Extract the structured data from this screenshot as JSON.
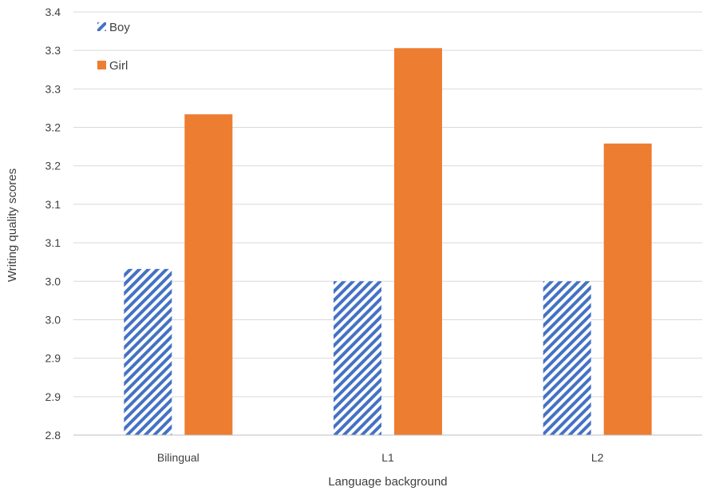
{
  "chart_data": {
    "type": "bar",
    "title": "",
    "xlabel": "Language background",
    "ylabel": "Writing quality scores",
    "categories": [
      "Bilingual",
      "L1",
      "L2"
    ],
    "series": [
      {
        "name": "Boy",
        "values": [
          3.016,
          3.0,
          3.0
        ],
        "color": "#4472C4",
        "pattern": "diagonal-stripes"
      },
      {
        "name": "Girl",
        "values": [
          3.217,
          3.303,
          3.179
        ],
        "color": "#ED7D31",
        "pattern": "solid"
      }
    ],
    "ylim": [
      2.8,
      3.35
    ],
    "y_tick_labels": [
      "2.8",
      "2.9",
      "2.9",
      "3.0",
      "3.0",
      "3.1",
      "3.1",
      "3.2",
      "3.2",
      "3.3",
      "3.3",
      "3.4"
    ],
    "grid": true,
    "legend_position": "top-left"
  }
}
